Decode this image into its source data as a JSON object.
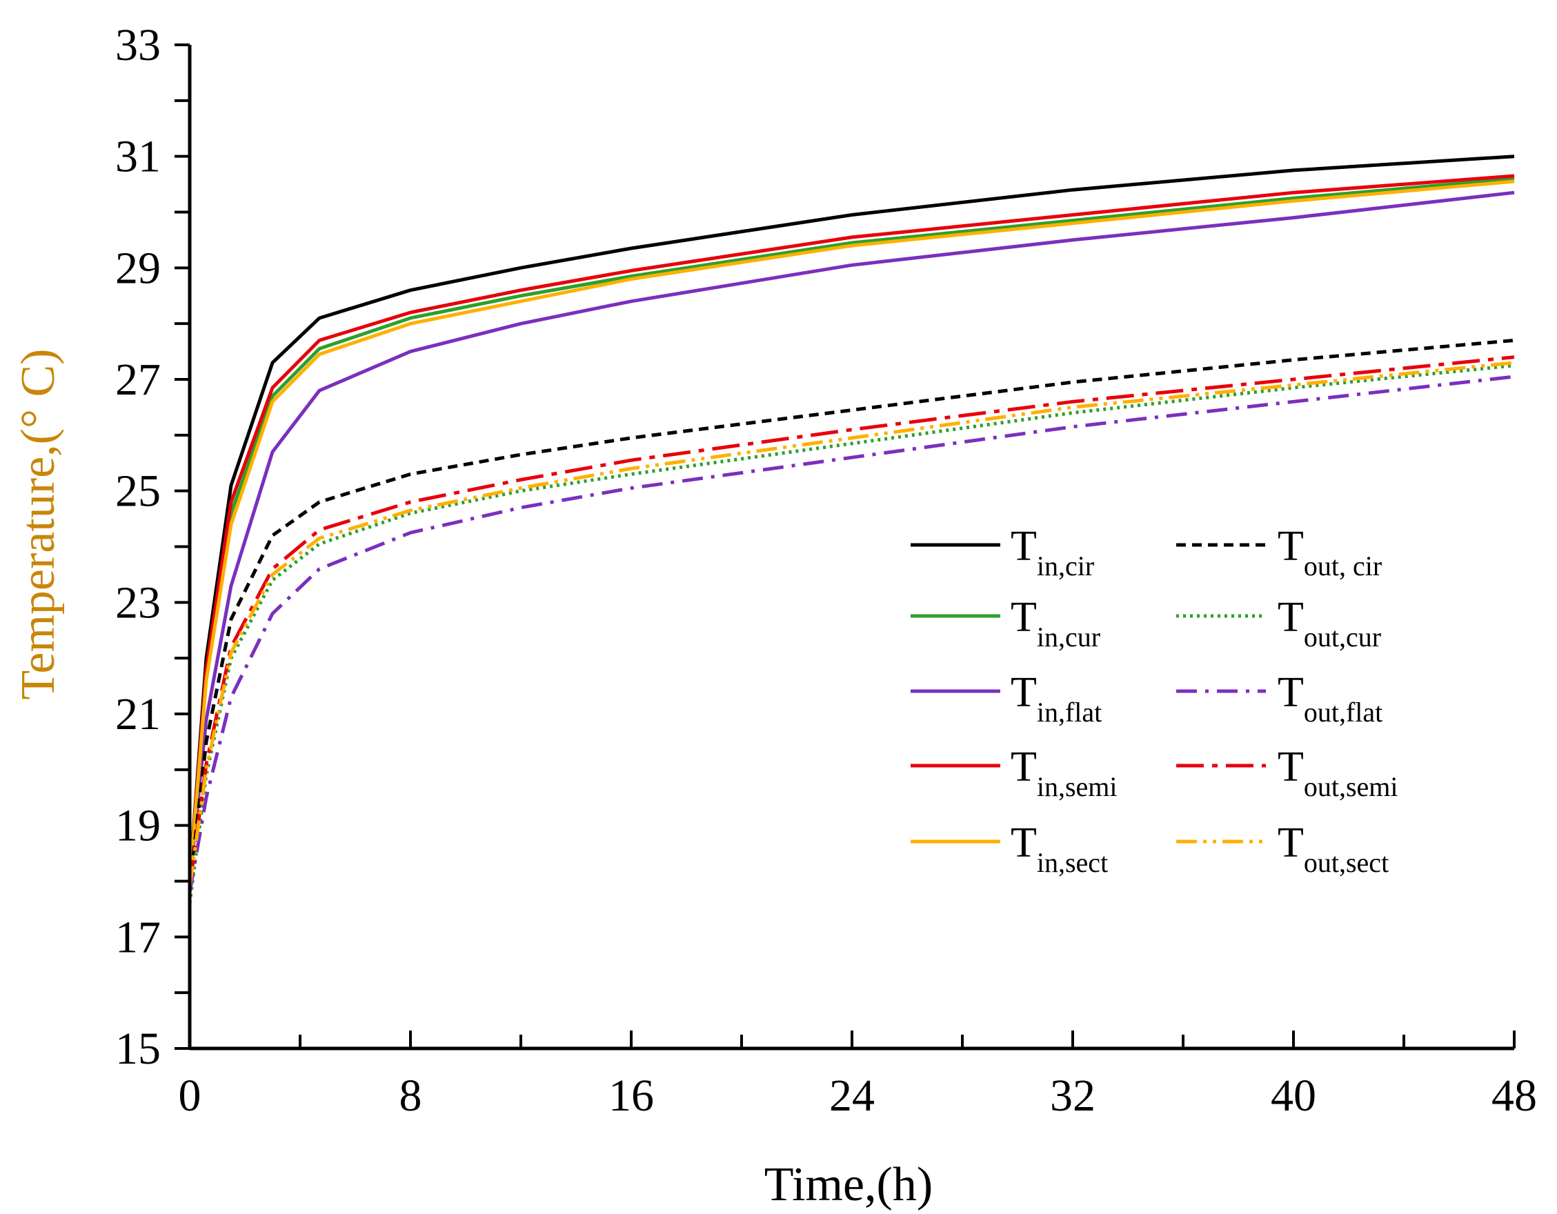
{
  "chart_data": {
    "type": "line",
    "title": "",
    "xlabel": "Time,(h)",
    "ylabel": "Temperature,(° C)",
    "xlim": [
      0,
      48
    ],
    "ylim": [
      15,
      33
    ],
    "x_ticks": [
      0,
      8,
      16,
      24,
      32,
      40,
      48
    ],
    "y_ticks": [
      15,
      17,
      19,
      21,
      23,
      25,
      27,
      29,
      31,
      33
    ],
    "x_minor_step": 4,
    "y_minor_step": 1,
    "grid": false,
    "legend_position": "right-center",
    "colors": {
      "axis": "#000000",
      "ylabel": "#c8860a",
      "black": "#000000",
      "green": "#2ca02c",
      "purple": "#7b2fbe",
      "red": "#e8000b",
      "orange": "#ffb000"
    },
    "series": [
      {
        "name": "T",
        "sub": "in,cir",
        "color": "#000000",
        "dash": "solid",
        "x": [
          0,
          0.6,
          1.5,
          3,
          4.7,
          8,
          12,
          16,
          24,
          32,
          40,
          48
        ],
        "y": [
          18.0,
          22.0,
          25.1,
          27.3,
          28.1,
          28.6,
          29.0,
          29.35,
          29.95,
          30.4,
          30.75,
          31.0
        ]
      },
      {
        "name": "T",
        "sub": "in,cur",
        "color": "#2ca02c",
        "dash": "solid",
        "x": [
          0,
          0.6,
          1.5,
          3,
          4.7,
          8,
          12,
          16,
          24,
          32,
          40,
          48
        ],
        "y": [
          18.0,
          21.7,
          24.6,
          26.7,
          27.55,
          28.1,
          28.5,
          28.85,
          29.45,
          29.85,
          30.25,
          30.6
        ]
      },
      {
        "name": "T",
        "sub": "in,flat",
        "color": "#7b2fbe",
        "dash": "solid",
        "x": [
          0,
          0.6,
          1.5,
          3,
          4.7,
          8,
          12,
          16,
          24,
          32,
          40,
          48
        ],
        "y": [
          18.0,
          20.9,
          23.3,
          25.7,
          26.8,
          27.5,
          28.0,
          28.4,
          29.05,
          29.5,
          29.9,
          30.35
        ]
      },
      {
        "name": "T",
        "sub": "in,semi",
        "color": "#e8000b",
        "dash": "solid",
        "x": [
          0,
          0.6,
          1.5,
          3,
          4.7,
          8,
          12,
          16,
          24,
          32,
          40,
          48
        ],
        "y": [
          18.0,
          21.8,
          24.8,
          26.85,
          27.7,
          28.2,
          28.6,
          28.95,
          29.55,
          29.95,
          30.35,
          30.65
        ]
      },
      {
        "name": "T",
        "sub": "in,sect",
        "color": "#ffb000",
        "dash": "solid",
        "x": [
          0,
          0.6,
          1.5,
          3,
          4.7,
          8,
          12,
          16,
          24,
          32,
          40,
          48
        ],
        "y": [
          18.0,
          21.6,
          24.4,
          26.6,
          27.45,
          28.0,
          28.4,
          28.8,
          29.4,
          29.8,
          30.2,
          30.55
        ]
      },
      {
        "name": "T",
        "sub": "out, cir",
        "color": "#000000",
        "dash": "dashed",
        "x": [
          0,
          0.6,
          1.5,
          3,
          4.7,
          8,
          12,
          16,
          24,
          32,
          40,
          48
        ],
        "y": [
          17.9,
          20.5,
          22.7,
          24.2,
          24.8,
          25.3,
          25.65,
          25.95,
          26.45,
          26.95,
          27.35,
          27.7
        ]
      },
      {
        "name": "T",
        "sub": "out,cur",
        "color": "#2ca02c",
        "dash": "dotted",
        "x": [
          0,
          0.6,
          1.5,
          3,
          4.7,
          8,
          12,
          16,
          24,
          32,
          40,
          48
        ],
        "y": [
          17.6,
          19.9,
          22.0,
          23.4,
          24.05,
          24.6,
          25.0,
          25.3,
          25.85,
          26.4,
          26.85,
          27.25
        ]
      },
      {
        "name": "T",
        "sub": "out,flat",
        "color": "#7b2fbe",
        "dash": "dashdot",
        "x": [
          0,
          0.6,
          1.5,
          3,
          4.7,
          8,
          12,
          16,
          24,
          32,
          40,
          48
        ],
        "y": [
          17.8,
          19.5,
          21.3,
          22.8,
          23.6,
          24.25,
          24.7,
          25.05,
          25.6,
          26.15,
          26.6,
          27.05
        ]
      },
      {
        "name": "T",
        "sub": "out,semi",
        "color": "#e8000b",
        "dash": "dashdotlong",
        "x": [
          0,
          0.6,
          1.5,
          3,
          4.7,
          8,
          12,
          16,
          24,
          32,
          40,
          48
        ],
        "y": [
          17.9,
          20.1,
          22.2,
          23.6,
          24.3,
          24.8,
          25.2,
          25.55,
          26.1,
          26.6,
          27.0,
          27.4
        ]
      },
      {
        "name": "T",
        "sub": "out,sect",
        "color": "#ffb000",
        "dash": "dashdotdot",
        "x": [
          0,
          0.6,
          1.5,
          3,
          4.7,
          8,
          12,
          16,
          24,
          32,
          40,
          48
        ],
        "y": [
          17.9,
          20.0,
          22.1,
          23.5,
          24.15,
          24.65,
          25.05,
          25.4,
          25.95,
          26.5,
          26.9,
          27.3
        ]
      }
    ]
  }
}
